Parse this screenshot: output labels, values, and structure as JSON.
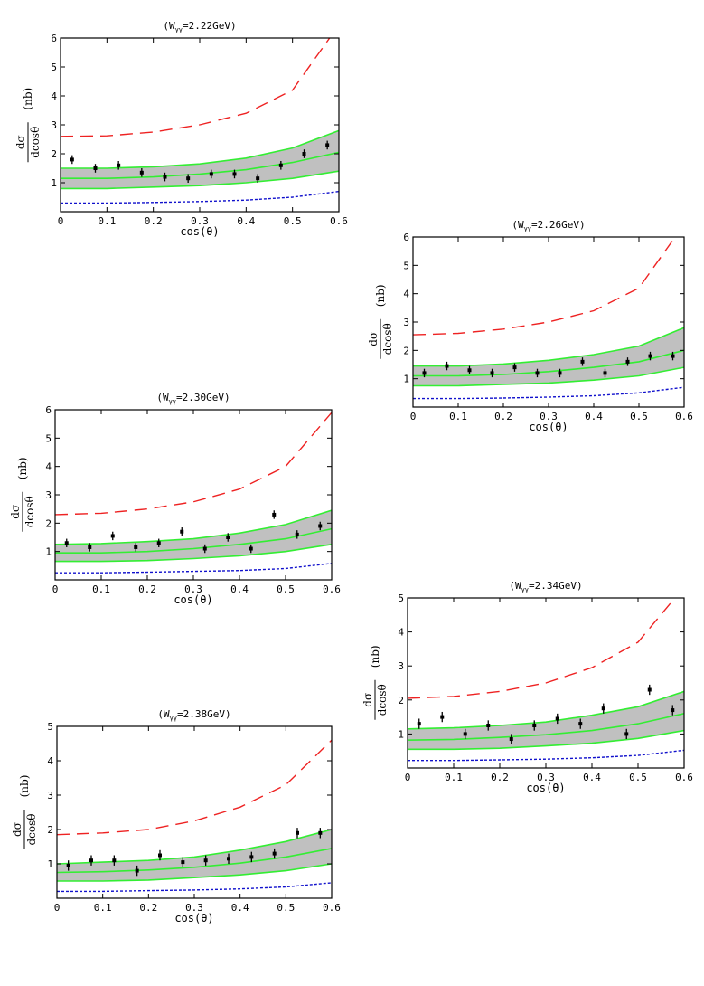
{
  "chart_data": [
    {
      "type": "scatter",
      "title": "(Wγγ=2.22GeV)",
      "title_main": "(W",
      "title_sub": "γγ",
      "title_rest": "=2.22GeV)",
      "xlabel": "cos(θ)",
      "ylabel": "dσ/dcosθ (nb)",
      "ylabel_num": "dσ",
      "ylabel_den": "dcosθ",
      "ylabel_unit": "(nb)",
      "xlim": [
        0,
        0.6
      ],
      "ylim": [
        0,
        6
      ],
      "xticks": [
        0,
        0.1,
        0.2,
        0.3,
        0.4,
        0.5,
        0.6
      ],
      "xtick_labels": [
        "0",
        "0.1",
        "0.2",
        "0.3",
        "0.4",
        "0.5",
        "0.6"
      ],
      "yticks": [
        1,
        2,
        3,
        4,
        5,
        6
      ],
      "ytick_labels": [
        "1",
        "2",
        "3",
        "4",
        "5",
        "6"
      ],
      "points": {
        "x": [
          0.025,
          0.075,
          0.125,
          0.175,
          0.225,
          0.275,
          0.325,
          0.375,
          0.425,
          0.475,
          0.525,
          0.575
        ],
        "y": [
          1.8,
          1.5,
          1.6,
          1.35,
          1.2,
          1.15,
          1.3,
          1.3,
          1.15,
          1.6,
          2.0,
          2.3
        ],
        "err": [
          0.15,
          0.15,
          0.15,
          0.15,
          0.15,
          0.15,
          0.15,
          0.15,
          0.15,
          0.15,
          0.15,
          0.15
        ]
      },
      "band_x": [
        0,
        0.1,
        0.2,
        0.3,
        0.4,
        0.5,
        0.6
      ],
      "band_upper": [
        1.5,
        1.5,
        1.55,
        1.65,
        1.85,
        2.2,
        2.8
      ],
      "band_center": [
        1.15,
        1.15,
        1.2,
        1.3,
        1.45,
        1.7,
        2.05
      ],
      "band_lower": [
        0.8,
        0.8,
        0.85,
        0.9,
        1.0,
        1.15,
        1.4
      ],
      "red_dashed": {
        "x": [
          0,
          0.1,
          0.2,
          0.3,
          0.4,
          0.5,
          0.58
        ],
        "y": [
          2.6,
          2.62,
          2.75,
          3.0,
          3.4,
          4.2,
          6.0
        ]
      },
      "blue_dotted": {
        "x": [
          0,
          0.1,
          0.2,
          0.3,
          0.4,
          0.5,
          0.6
        ],
        "y": [
          0.3,
          0.3,
          0.32,
          0.35,
          0.4,
          0.5,
          0.7
        ]
      }
    },
    {
      "type": "scatter",
      "title": "(Wγγ=2.26GeV)",
      "title_main": "(W",
      "title_sub": "γγ",
      "title_rest": "=2.26GeV)",
      "xlabel": "cos(θ)",
      "ylabel": "dσ/dcosθ (nb)",
      "ylabel_num": "dσ",
      "ylabel_den": "dcosθ",
      "ylabel_unit": "(nb)",
      "xlim": [
        0,
        0.6
      ],
      "ylim": [
        0,
        6
      ],
      "xticks": [
        0,
        0.1,
        0.2,
        0.3,
        0.4,
        0.5,
        0.6
      ],
      "xtick_labels": [
        "0",
        "0.1",
        "0.2",
        "0.3",
        "0.4",
        "0.5",
        "0.6"
      ],
      "yticks": [
        1,
        2,
        3,
        4,
        5,
        6
      ],
      "ytick_labels": [
        "1",
        "2",
        "3",
        "4",
        "5",
        "6"
      ],
      "points": {
        "x": [
          0.025,
          0.075,
          0.125,
          0.175,
          0.225,
          0.275,
          0.325,
          0.375,
          0.425,
          0.475,
          0.525,
          0.575
        ],
        "y": [
          1.2,
          1.45,
          1.3,
          1.2,
          1.4,
          1.2,
          1.2,
          1.6,
          1.2,
          1.6,
          1.8,
          1.8
        ],
        "err": [
          0.15,
          0.15,
          0.15,
          0.15,
          0.15,
          0.15,
          0.15,
          0.15,
          0.15,
          0.15,
          0.15,
          0.15
        ]
      },
      "band_x": [
        0,
        0.1,
        0.2,
        0.3,
        0.4,
        0.5,
        0.6
      ],
      "band_upper": [
        1.45,
        1.45,
        1.52,
        1.65,
        1.85,
        2.15,
        2.8
      ],
      "band_center": [
        1.1,
        1.1,
        1.15,
        1.25,
        1.4,
        1.6,
        2.0
      ],
      "band_lower": [
        0.75,
        0.75,
        0.8,
        0.85,
        0.95,
        1.1,
        1.4
      ],
      "red_dashed": {
        "x": [
          0,
          0.1,
          0.2,
          0.3,
          0.4,
          0.5,
          0.58
        ],
        "y": [
          2.55,
          2.6,
          2.75,
          3.0,
          3.4,
          4.2,
          6.0
        ]
      },
      "blue_dotted": {
        "x": [
          0,
          0.1,
          0.2,
          0.3,
          0.4,
          0.5,
          0.6
        ],
        "y": [
          0.3,
          0.3,
          0.32,
          0.35,
          0.4,
          0.5,
          0.7
        ]
      }
    },
    {
      "type": "scatter",
      "title": "(Wγγ=2.30GeV)",
      "title_main": "(W",
      "title_sub": "γγ",
      "title_rest": "=2.30GeV)",
      "xlabel": "cos(θ)",
      "ylabel": "dσ/dcosθ (nb)",
      "ylabel_num": "dσ",
      "ylabel_den": "dcosθ",
      "ylabel_unit": "(nb)",
      "xlim": [
        0,
        0.6
      ],
      "ylim": [
        0,
        6
      ],
      "xticks": [
        0,
        0.1,
        0.2,
        0.3,
        0.4,
        0.5,
        0.6
      ],
      "xtick_labels": [
        "0",
        "0.1",
        "0.2",
        "0.3",
        "0.4",
        "0.5",
        "0.6"
      ],
      "yticks": [
        1,
        2,
        3,
        4,
        5,
        6
      ],
      "ytick_labels": [
        "1",
        "2",
        "3",
        "4",
        "5",
        "6"
      ],
      "points": {
        "x": [
          0.025,
          0.075,
          0.125,
          0.175,
          0.225,
          0.275,
          0.325,
          0.375,
          0.425,
          0.475,
          0.525,
          0.575
        ],
        "y": [
          1.3,
          1.15,
          1.55,
          1.15,
          1.3,
          1.7,
          1.1,
          1.5,
          1.1,
          2.3,
          1.6,
          1.9
        ],
        "err": [
          0.15,
          0.15,
          0.15,
          0.15,
          0.15,
          0.15,
          0.15,
          0.15,
          0.15,
          0.15,
          0.15,
          0.15
        ]
      },
      "band_x": [
        0,
        0.1,
        0.2,
        0.3,
        0.4,
        0.5,
        0.6
      ],
      "band_upper": [
        1.25,
        1.28,
        1.35,
        1.45,
        1.65,
        1.95,
        2.45
      ],
      "band_center": [
        0.95,
        0.95,
        1.0,
        1.1,
        1.25,
        1.45,
        1.8
      ],
      "band_lower": [
        0.65,
        0.65,
        0.68,
        0.75,
        0.85,
        1.0,
        1.25
      ],
      "red_dashed": {
        "x": [
          0,
          0.1,
          0.2,
          0.3,
          0.4,
          0.5,
          0.6
        ],
        "y": [
          2.3,
          2.35,
          2.5,
          2.75,
          3.2,
          4.0,
          5.9
        ]
      },
      "blue_dotted": {
        "x": [
          0,
          0.1,
          0.2,
          0.3,
          0.4,
          0.5,
          0.6
        ],
        "y": [
          0.25,
          0.25,
          0.27,
          0.3,
          0.33,
          0.4,
          0.58
        ]
      }
    },
    {
      "type": "scatter",
      "title": "(Wγγ=2.34GeV)",
      "title_main": "(W",
      "title_sub": "γγ",
      "title_rest": "=2.34GeV)",
      "xlabel": "cos(θ)",
      "ylabel": "dσ/dcosθ (nb)",
      "ylabel_num": "dσ",
      "ylabel_den": "dcosθ",
      "ylabel_unit": "(nb)",
      "xlim": [
        0,
        0.6
      ],
      "ylim": [
        0,
        5
      ],
      "xticks": [
        0,
        0.1,
        0.2,
        0.3,
        0.4,
        0.5,
        0.6
      ],
      "xtick_labels": [
        "0",
        "0.1",
        "0.2",
        "0.3",
        "0.4",
        "0.5",
        "0.6"
      ],
      "yticks": [
        1,
        2,
        3,
        4,
        5
      ],
      "ytick_labels": [
        "1",
        "2",
        "3",
        "4",
        "5"
      ],
      "points": {
        "x": [
          0.025,
          0.075,
          0.125,
          0.175,
          0.225,
          0.275,
          0.325,
          0.375,
          0.425,
          0.475,
          0.525,
          0.575
        ],
        "y": [
          1.3,
          1.5,
          1.0,
          1.25,
          0.85,
          1.25,
          1.45,
          1.3,
          1.75,
          1.0,
          2.3,
          1.7
        ],
        "err": [
          0.15,
          0.15,
          0.15,
          0.15,
          0.15,
          0.15,
          0.15,
          0.15,
          0.15,
          0.15,
          0.15,
          0.15
        ]
      },
      "band_x": [
        0,
        0.1,
        0.2,
        0.3,
        0.4,
        0.5,
        0.6
      ],
      "band_upper": [
        1.15,
        1.18,
        1.25,
        1.35,
        1.55,
        1.8,
        2.25
      ],
      "band_center": [
        0.82,
        0.84,
        0.9,
        0.98,
        1.1,
        1.3,
        1.6
      ],
      "band_lower": [
        0.55,
        0.55,
        0.58,
        0.65,
        0.73,
        0.87,
        1.1
      ],
      "red_dashed": {
        "x": [
          0,
          0.1,
          0.2,
          0.3,
          0.4,
          0.5,
          0.58
        ],
        "y": [
          2.05,
          2.1,
          2.25,
          2.5,
          2.95,
          3.7,
          5.0
        ]
      },
      "blue_dotted": {
        "x": [
          0,
          0.1,
          0.2,
          0.3,
          0.4,
          0.5,
          0.6
        ],
        "y": [
          0.22,
          0.22,
          0.24,
          0.26,
          0.3,
          0.37,
          0.52
        ]
      }
    },
    {
      "type": "scatter",
      "title": "(Wγγ=2.38GeV)",
      "title_main": "(W",
      "title_sub": "γγ",
      "title_rest": "=2.38GeV)",
      "xlabel": "cos(θ)",
      "ylabel": "dσ/dcosθ (nb)",
      "ylabel_num": "dσ",
      "ylabel_den": "dcosθ",
      "ylabel_unit": "(nb)",
      "xlim": [
        0,
        0.6
      ],
      "ylim": [
        0,
        5
      ],
      "xticks": [
        0,
        0.1,
        0.2,
        0.3,
        0.4,
        0.5,
        0.6
      ],
      "xtick_labels": [
        "0",
        "0.1",
        "0.2",
        "0.3",
        "0.4",
        "0.5",
        "0.6"
      ],
      "yticks": [
        1,
        2,
        3,
        4,
        5
      ],
      "ytick_labels": [
        "1",
        "2",
        "3",
        "4",
        "5"
      ],
      "points": {
        "x": [
          0.025,
          0.075,
          0.125,
          0.175,
          0.225,
          0.275,
          0.325,
          0.375,
          0.425,
          0.475,
          0.525,
          0.575
        ],
        "y": [
          0.95,
          1.1,
          1.1,
          0.8,
          1.25,
          1.05,
          1.1,
          1.15,
          1.2,
          1.3,
          1.9,
          1.9
        ],
        "err": [
          0.15,
          0.15,
          0.15,
          0.15,
          0.15,
          0.15,
          0.15,
          0.15,
          0.15,
          0.15,
          0.15,
          0.15
        ]
      },
      "band_x": [
        0,
        0.1,
        0.2,
        0.3,
        0.4,
        0.5,
        0.6
      ],
      "band_upper": [
        1.0,
        1.05,
        1.1,
        1.2,
        1.4,
        1.65,
        2.0
      ],
      "band_center": [
        0.75,
        0.77,
        0.82,
        0.9,
        1.02,
        1.2,
        1.45
      ],
      "band_lower": [
        0.5,
        0.5,
        0.53,
        0.6,
        0.68,
        0.8,
        1.0
      ],
      "red_dashed": {
        "x": [
          0,
          0.1,
          0.2,
          0.3,
          0.4,
          0.5,
          0.6
        ],
        "y": [
          1.85,
          1.9,
          2.0,
          2.25,
          2.65,
          3.3,
          4.6
        ]
      },
      "blue_dotted": {
        "x": [
          0,
          0.1,
          0.2,
          0.3,
          0.4,
          0.5,
          0.6
        ],
        "y": [
          0.2,
          0.2,
          0.22,
          0.24,
          0.27,
          0.33,
          0.45
        ]
      }
    }
  ],
  "colors": {
    "band_fill": "#c0c0c0",
    "band_edge": "#33ee33",
    "central": "#33ee33",
    "red_dashed": "#ee2222",
    "blue_dotted": "#1111cc",
    "points": "#000000"
  }
}
